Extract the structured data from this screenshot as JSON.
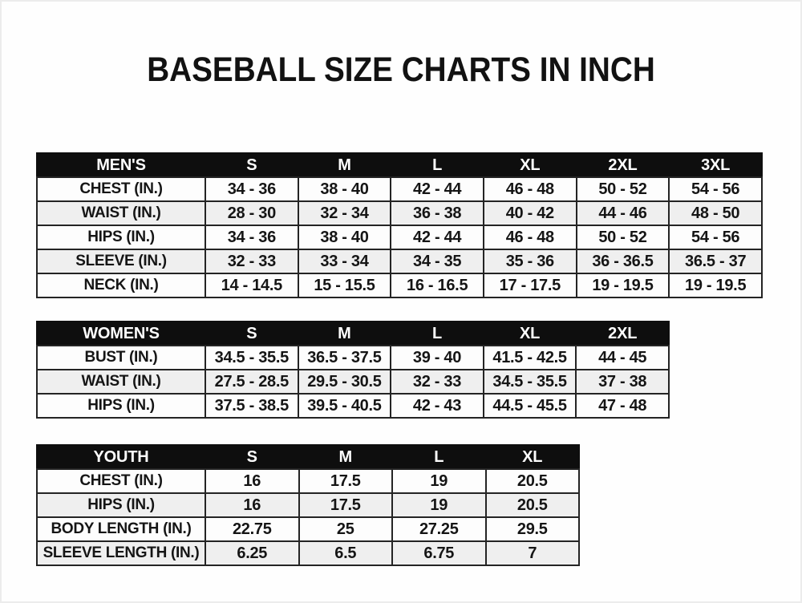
{
  "page": {
    "title": "BASEBALL SIZE CHARTS IN INCH"
  },
  "tables": [
    {
      "id": "mens",
      "header": [
        "MEN'S",
        "S",
        "M",
        "L",
        "XL",
        "2XL",
        "3XL"
      ],
      "rows": [
        {
          "label": "CHEST (IN.)",
          "values": [
            "34 - 36",
            "38 - 40",
            "42 - 44",
            "46 - 48",
            "50 - 52",
            "54 - 56"
          ]
        },
        {
          "label": "WAIST (IN.)",
          "values": [
            "28 - 30",
            "32 - 34",
            "36 - 38",
            "40 - 42",
            "44 - 46",
            "48 - 50"
          ]
        },
        {
          "label": "HIPS (IN.)",
          "values": [
            "34 - 36",
            "38 - 40",
            "42 - 44",
            "46 - 48",
            "50 - 52",
            "54 - 56"
          ]
        },
        {
          "label": "SLEEVE (IN.)",
          "values": [
            "32 - 33",
            "33 - 34",
            "34 - 35",
            "35 - 36",
            "36 - 36.5",
            "36.5 - 37"
          ]
        },
        {
          "label": "NECK (IN.)",
          "values": [
            "14 - 14.5",
            "15 - 15.5",
            "16 - 16.5",
            "17 - 17.5",
            "19 - 19.5",
            "19 - 19.5"
          ]
        }
      ]
    },
    {
      "id": "womens",
      "header": [
        "WOMEN'S",
        "S",
        "M",
        "L",
        "XL",
        "2XL"
      ],
      "rows": [
        {
          "label": "BUST (IN.)",
          "values": [
            "34.5 - 35.5",
            "36.5 - 37.5",
            "39 - 40",
            "41.5 - 42.5",
            "44 - 45"
          ]
        },
        {
          "label": "WAIST (IN.)",
          "values": [
            "27.5 - 28.5",
            "29.5 - 30.5",
            "32 - 33",
            "34.5 - 35.5",
            "37 - 38"
          ]
        },
        {
          "label": "HIPS (IN.)",
          "values": [
            "37.5 - 38.5",
            "39.5 - 40.5",
            "42 - 43",
            "44.5 - 45.5",
            "47 - 48"
          ]
        }
      ]
    },
    {
      "id": "youth",
      "header": [
        "YOUTH",
        "S",
        "M",
        "L",
        "XL"
      ],
      "rows": [
        {
          "label": "CHEST (IN.)",
          "values": [
            "16",
            "17.5",
            "19",
            "20.5"
          ]
        },
        {
          "label": "HIPS (IN.)",
          "values": [
            "16",
            "17.5",
            "19",
            "20.5"
          ]
        },
        {
          "label": "BODY LENGTH (IN.)",
          "values": [
            "22.75",
            "25",
            "27.25",
            "29.5"
          ]
        },
        {
          "label": "SLEEVE LENGTH (IN.)",
          "values": [
            "6.25",
            "6.5",
            "6.75",
            "7"
          ]
        }
      ]
    }
  ],
  "colors": {
    "header_bg": "#0e0e0e",
    "header_text": "#ffffff",
    "alt_row_bg": "#efefef",
    "border": "#242424",
    "title_text": "#121212"
  }
}
